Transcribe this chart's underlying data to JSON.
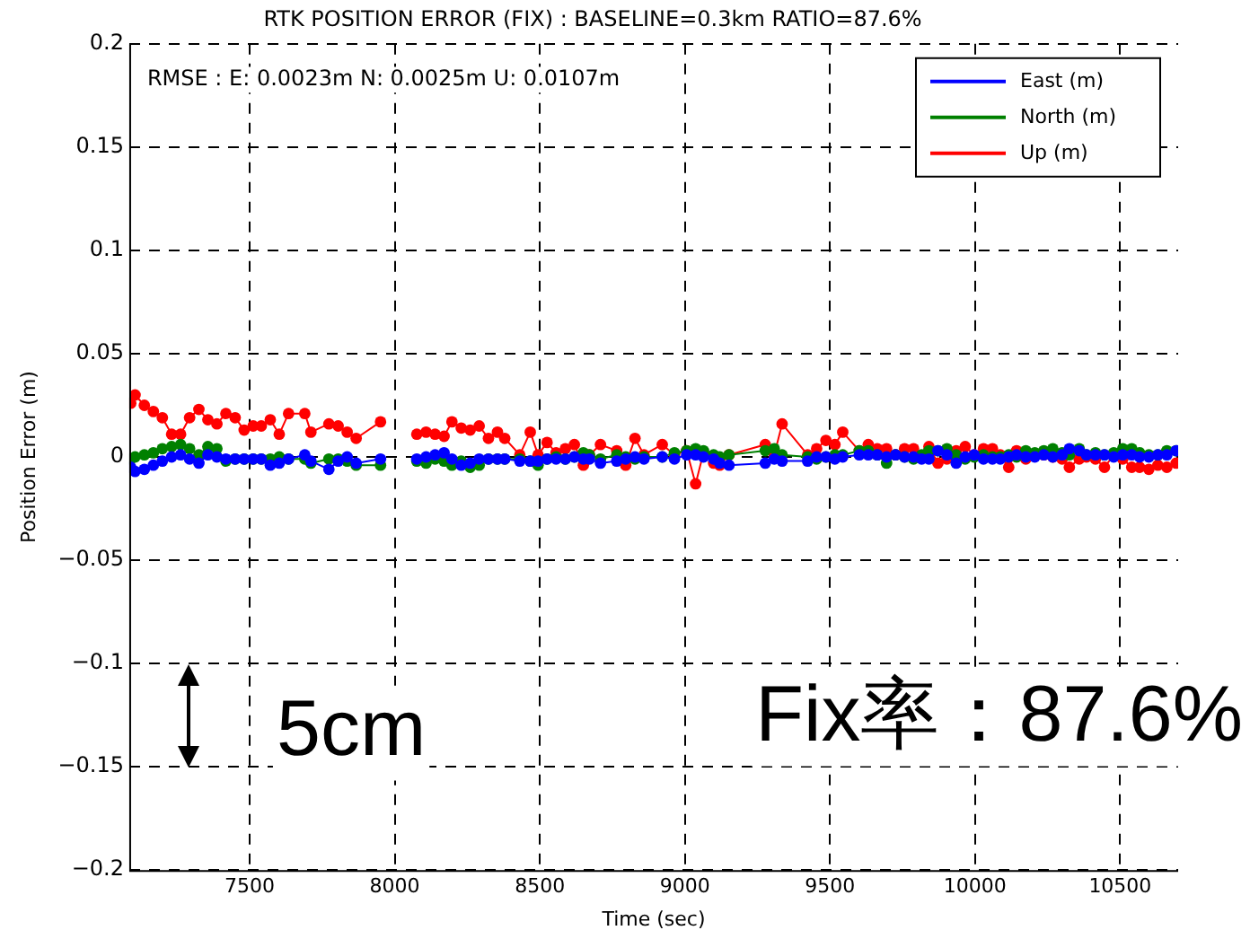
{
  "chart_data": {
    "type": "line",
    "title": "RTK POSITION ERROR (FIX) : BASELINE=0.3km RATIO=87.6%",
    "xlabel": "Time (sec)",
    "ylabel": "Position Error (m)",
    "x": [
      7090,
      7105,
      7137,
      7168,
      7199,
      7231,
      7262,
      7293,
      7325,
      7356,
      7387,
      7418,
      7450,
      7481,
      7512,
      7540,
      7571,
      7602,
      7634,
      7690,
      7711,
      7773,
      7805,
      7836,
      7867,
      7951,
      8010,
      8076,
      8108,
      8139,
      8170,
      8197,
      8229,
      8260,
      8291,
      8323,
      8354,
      8379,
      8431,
      8467,
      8494,
      8525,
      8556,
      8588,
      8619,
      8650,
      8671,
      8709,
      8765,
      8796,
      8828,
      8859,
      8922,
      8964,
      9006,
      9037,
      9064,
      9099,
      9120,
      9152,
      9277,
      9308,
      9335,
      9423,
      9454,
      9486,
      9517,
      9544,
      9601,
      9632,
      9663,
      9695,
      9726,
      9757,
      9788,
      9816,
      9841,
      9872,
      9903,
      9935,
      9966,
      9997,
      10029,
      10060,
      10087,
      10116,
      10143,
      10175,
      10206,
      10237,
      10268,
      10300,
      10325,
      10359,
      10384,
      10415,
      10446,
      10478,
      10509,
      10540,
      10567,
      10599,
      10630,
      10661,
      10693
    ],
    "series": [
      {
        "name": "East (m)",
        "color": "#0000ff",
        "values": [
          -0.005,
          -0.007,
          -0.006,
          -0.004,
          -0.002,
          0,
          0.001,
          -0.001,
          -0.003,
          0.001,
          0,
          -0.001,
          -0.001,
          -0.001,
          -0.001,
          -0.001,
          -0.004,
          -0.003,
          -0.001,
          0.001,
          -0.002,
          -0.006,
          -0.002,
          0,
          -0.003,
          -0.001,
          null,
          -0.001,
          0,
          0.001,
          0.002,
          -0.001,
          -0.004,
          -0.003,
          -0.001,
          -0.001,
          -0.001,
          -0.001,
          -0.002,
          -0.002,
          -0.002,
          -0.001,
          -0.001,
          -0.001,
          0,
          -0.001,
          -0.001,
          -0.003,
          -0.002,
          -0.001,
          0,
          -0.001,
          0,
          -0.001,
          0.001,
          0.001,
          0,
          -0.001,
          -0.003,
          -0.004,
          -0.003,
          -0.001,
          -0.002,
          -0.002,
          0,
          0,
          -0.001,
          0,
          0.001,
          0.001,
          0.001,
          0,
          0.001,
          0,
          0,
          -0.001,
          -0.001,
          0.003,
          0.001,
          -0.003,
          0,
          0.001,
          -0.001,
          -0.001,
          -0.001,
          0,
          0.001,
          0,
          0,
          0.001,
          0,
          0.001,
          0.004,
          0.003,
          0.001,
          0.001,
          0.001,
          0,
          0.001,
          0.001,
          0,
          0,
          0.001,
          0.001,
          0.003
        ]
      },
      {
        "name": "North (m)",
        "color": "#008000",
        "values": [
          -0.001,
          0,
          0.001,
          0.002,
          0.004,
          0.005,
          0.006,
          0.004,
          0.001,
          0.005,
          0.004,
          -0.002,
          -0.001,
          -0.001,
          -0.001,
          -0.001,
          -0.001,
          0,
          -0.001,
          -0.001,
          -0.003,
          -0.001,
          -0.001,
          -0.002,
          -0.004,
          -0.004,
          null,
          -0.002,
          -0.003,
          -0.001,
          -0.002,
          -0.004,
          -0.002,
          -0.005,
          -0.004,
          -0.001,
          -0.001,
          -0.001,
          -0.001,
          -0.002,
          -0.004,
          -0.001,
          0,
          -0.001,
          0,
          0.002,
          0.001,
          -0.001,
          0.001,
          0,
          -0.001,
          0,
          0,
          0.002,
          0.003,
          0.004,
          0.003,
          0.001,
          0,
          0.001,
          0.003,
          0.004,
          0.001,
          0,
          -0.001,
          0,
          0.001,
          0.001,
          0.003,
          0.003,
          0.001,
          -0.003,
          0.001,
          0,
          -0.001,
          0.001,
          0.003,
          0.003,
          0.004,
          0.001,
          -0.001,
          0,
          0.001,
          0,
          0,
          0.001,
          0,
          0.003,
          0.002,
          0.003,
          0.004,
          0.002,
          0.001,
          0.004,
          0.001,
          0.002,
          0.001,
          0.002,
          0.004,
          0.004,
          0.002,
          0.001,
          0.001,
          0.003,
          0.003
        ]
      },
      {
        "name": "Up (m)",
        "color": "#ff0000",
        "values": [
          0.026,
          0.03,
          0.025,
          0.022,
          0.019,
          0.011,
          0.011,
          0.019,
          0.023,
          0.018,
          0.016,
          0.021,
          0.019,
          0.013,
          0.015,
          0.015,
          0.018,
          0.011,
          0.021,
          0.021,
          0.012,
          0.016,
          0.015,
          0.012,
          0.009,
          0.017,
          null,
          0.011,
          0.012,
          0.011,
          0.01,
          0.017,
          0.014,
          0.013,
          0.015,
          0.009,
          0.012,
          0.009,
          0.001,
          0.012,
          0.001,
          0.007,
          0.002,
          0.004,
          0.006,
          -0.004,
          0.001,
          0.006,
          0.003,
          -0.004,
          0.009,
          0.001,
          0.006,
          0.001,
          0.003,
          -0.013,
          0.002,
          -0.003,
          -0.004,
          0.001,
          0.006,
          0.001,
          0.016,
          0.001,
          0.004,
          0.008,
          0.006,
          0.012,
          0.003,
          0.006,
          0.004,
          0.004,
          0.001,
          0.004,
          0.004,
          0,
          0.005,
          -0.003,
          -0.001,
          0.003,
          0.005,
          0.001,
          0.004,
          0.004,
          0.001,
          -0.005,
          0.003,
          -0.001,
          0.001,
          0.001,
          0,
          -0.001,
          -0.005,
          -0.001,
          0,
          -0.001,
          -0.005,
          0.001,
          -0.001,
          -0.005,
          -0.005,
          -0.006,
          -0.004,
          -0.005,
          -0.003
        ]
      }
    ],
    "xlim": [
      7085,
      10700
    ],
    "xticks": [
      7500,
      8000,
      8500,
      9000,
      9500,
      10000,
      10500
    ],
    "ylim": [
      -0.2,
      0.2
    ],
    "yticks": [
      {
        "value": -0.2,
        "label": "−0.2"
      },
      {
        "value": -0.15,
        "label": "−0.15"
      },
      {
        "value": -0.1,
        "label": "−0.1"
      },
      {
        "value": -0.05,
        "label": "−0.05"
      },
      0,
      0.05,
      0.1,
      0.15,
      0.2
    ],
    "grid": true,
    "legend": "top right",
    "marker": "circle",
    "line_style": "solid",
    "annotations": [
      "RMSE : E: 0.0023m N: 0.0025m U: 0.0107m",
      "5cm",
      "Fix率：87.6%"
    ]
  }
}
